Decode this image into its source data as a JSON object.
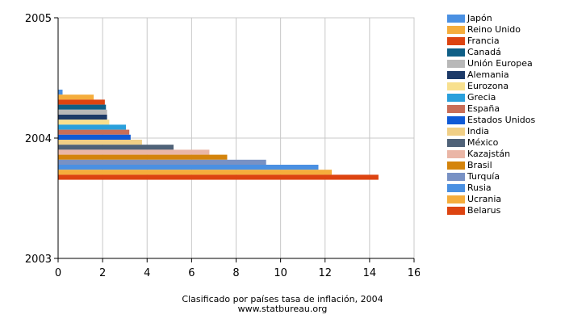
{
  "chart_data": {
    "type": "bar",
    "orientation": "horizontal",
    "title": "Clasificado por países tasa de inflación, 2004",
    "subtitle": "www.statbureau.org",
    "xlabel": "",
    "ylabel": "",
    "xlim": [
      0,
      16
    ],
    "x_ticks": [
      "0",
      "2",
      "4",
      "6",
      "8",
      "10",
      "12",
      "14",
      "16"
    ],
    "y_ticks": [
      "2003",
      "2004",
      "2005"
    ],
    "grid": true,
    "legend_position": "right",
    "series": [
      {
        "name": "Japón",
        "value": 0.2,
        "color": "#4a90e2"
      },
      {
        "name": "Reino Unido",
        "value": 1.6,
        "color": "#f5ad3c"
      },
      {
        "name": "Francia",
        "value": 2.1,
        "color": "#dd4411"
      },
      {
        "name": "Canadá",
        "value": 2.15,
        "color": "#0f5f86"
      },
      {
        "name": "Unión Europea",
        "value": 2.2,
        "color": "#b8b8b8"
      },
      {
        "name": "Alemania",
        "value": 2.2,
        "color": "#1c3a68"
      },
      {
        "name": "Eurozona",
        "value": 2.3,
        "color": "#f8e08e"
      },
      {
        "name": "Grecia",
        "value": 3.05,
        "color": "#2aa0dc"
      },
      {
        "name": "España",
        "value": 3.2,
        "color": "#c96e58"
      },
      {
        "name": "Estados Unidos",
        "value": 3.26,
        "color": "#0f5ad6"
      },
      {
        "name": "India",
        "value": 3.77,
        "color": "#f0cf86"
      },
      {
        "name": "México",
        "value": 5.19,
        "color": "#4f6278"
      },
      {
        "name": "Kazajstán",
        "value": 6.8,
        "color": "#eab6a6"
      },
      {
        "name": "Brasil",
        "value": 7.6,
        "color": "#d4840c"
      },
      {
        "name": "Turquía",
        "value": 9.35,
        "color": "#7891c4"
      },
      {
        "name": "Rusia",
        "value": 11.7,
        "color": "#4a90e2"
      },
      {
        "name": "Ucrania",
        "value": 12.3,
        "color": "#f5ad3c"
      },
      {
        "name": "Belarus",
        "value": 14.4,
        "color": "#dd4411"
      }
    ]
  }
}
